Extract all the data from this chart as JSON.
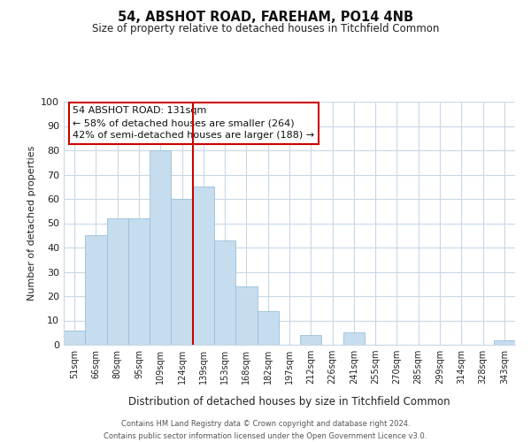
{
  "title": "54, ABSHOT ROAD, FAREHAM, PO14 4NB",
  "subtitle": "Size of property relative to detached houses in Titchfield Common",
  "xlabel": "Distribution of detached houses by size in Titchfield Common",
  "ylabel": "Number of detached properties",
  "bar_labels": [
    "51sqm",
    "66sqm",
    "80sqm",
    "95sqm",
    "109sqm",
    "124sqm",
    "139sqm",
    "153sqm",
    "168sqm",
    "182sqm",
    "197sqm",
    "212sqm",
    "226sqm",
    "241sqm",
    "255sqm",
    "270sqm",
    "285sqm",
    "299sqm",
    "314sqm",
    "328sqm",
    "343sqm"
  ],
  "bar_values": [
    6,
    45,
    52,
    52,
    80,
    60,
    65,
    43,
    24,
    14,
    0,
    4,
    0,
    5,
    0,
    0,
    0,
    0,
    0,
    0,
    2
  ],
  "bar_color": "#c5ddef",
  "bar_edge_color": "#9bbfd8",
  "vline_x": 5.5,
  "vline_color": "#cc0000",
  "ylim": [
    0,
    100
  ],
  "yticks": [
    0,
    10,
    20,
    30,
    40,
    50,
    60,
    70,
    80,
    90,
    100
  ],
  "annotation_title": "54 ABSHOT ROAD: 131sqm",
  "annotation_line1": "← 58% of detached houses are smaller (264)",
  "annotation_line2": "42% of semi-detached houses are larger (188) →",
  "annotation_box_color": "#ffffff",
  "annotation_box_edge": "#cc0000",
  "footer_line1": "Contains HM Land Registry data © Crown copyright and database right 2024.",
  "footer_line2": "Contains public sector information licensed under the Open Government Licence v3.0.",
  "background_color": "#ffffff",
  "grid_color": "#c8d8e8"
}
